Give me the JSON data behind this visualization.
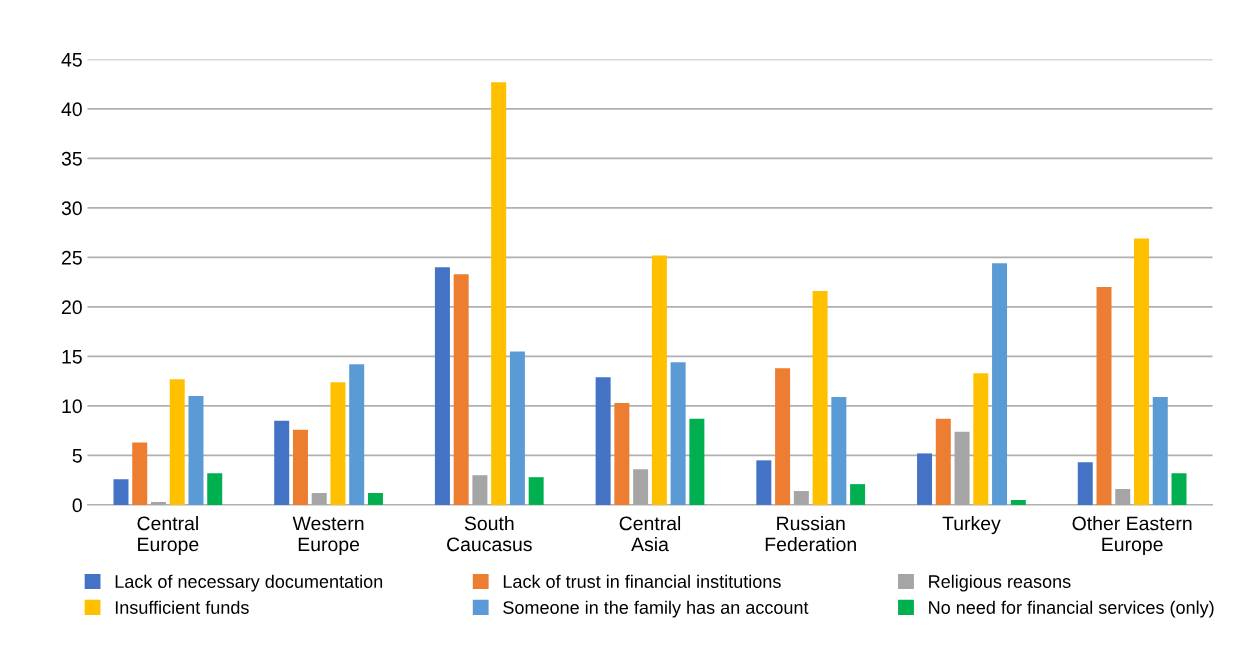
{
  "chart_data": {
    "type": "bar",
    "categories": [
      "Central\nEurope",
      "Western\nEurope",
      "South\nCaucasus",
      "Central\nAsia",
      "Russian\nFederation",
      "Turkey",
      "Other Eastern\nEurope"
    ],
    "series": [
      {
        "name": "Lack of necessary documentation",
        "color": "#4472c4",
        "values": [
          2.6,
          8.5,
          24.0,
          12.9,
          4.5,
          5.2,
          4.3
        ]
      },
      {
        "name": "Lack of trust in financial institutions",
        "color": "#ed7d31",
        "values": [
          6.3,
          7.6,
          23.3,
          10.3,
          13.8,
          8.7,
          22.0
        ]
      },
      {
        "name": "Religious reasons",
        "color": "#a5a5a5",
        "values": [
          0.3,
          1.2,
          3.0,
          3.6,
          1.4,
          7.4,
          1.6
        ]
      },
      {
        "name": "Insufficient funds",
        "color": "#ffc000",
        "values": [
          12.7,
          12.4,
          42.7,
          25.2,
          21.6,
          13.3,
          26.9
        ]
      },
      {
        "name": "Someone in the family has an account",
        "color": "#5b9bd5",
        "values": [
          11.0,
          14.2,
          15.5,
          14.4,
          10.9,
          24.4,
          10.9
        ]
      },
      {
        "name": "No need for financial services (only)",
        "color": "#00b050",
        "values": [
          3.2,
          1.2,
          2.8,
          8.7,
          2.1,
          0.5,
          3.2
        ]
      }
    ],
    "ylim": [
      0,
      45
    ],
    "yticks": [
      0,
      5,
      10,
      15,
      20,
      25,
      30,
      35,
      40,
      45
    ],
    "grid": "y",
    "legend": "bottom"
  }
}
